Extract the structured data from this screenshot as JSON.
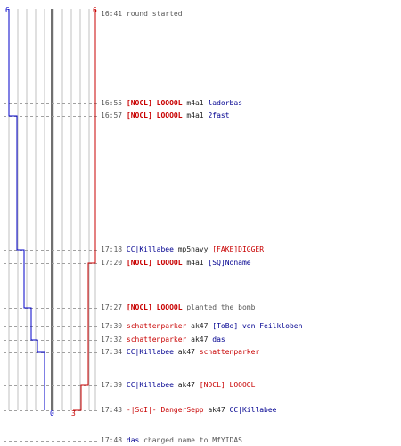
{
  "scores": {
    "blue_top": "6",
    "red_top": "6",
    "blue_bottom": "0",
    "red_bottom": "3"
  },
  "colors": {
    "blue": "#0000c8",
    "red": "#c80000",
    "grid": "#c0c0c0",
    "center": "#707070"
  },
  "events": [
    {
      "time": "16:41",
      "parts": [
        {
          "text": "round started",
          "cls": "act"
        }
      ]
    },
    {
      "time": "16:55",
      "parts": [
        {
          "text": "[NOCL] LOOOOL",
          "cls": "red"
        },
        {
          "text": "m4a1",
          "cls": "wep"
        },
        {
          "text": "ladorbas",
          "cls": "nb"
        }
      ]
    },
    {
      "time": "16:57",
      "parts": [
        {
          "text": "[NOCL] LOOOOL",
          "cls": "red"
        },
        {
          "text": "m4a1",
          "cls": "wep"
        },
        {
          "text": "2fast",
          "cls": "nb"
        }
      ]
    },
    {
      "time": "17:18",
      "parts": [
        {
          "text": "CC|Killabee",
          "cls": "nb"
        },
        {
          "text": "mp5navy",
          "cls": "wep"
        },
        {
          "text": "[FAKE]DIGGER",
          "cls": "nr"
        }
      ]
    },
    {
      "time": "17:20",
      "parts": [
        {
          "text": "[NOCL] LOOOOL",
          "cls": "red"
        },
        {
          "text": "m4a1",
          "cls": "wep"
        },
        {
          "text": "[SQ]Noname",
          "cls": "nb"
        }
      ]
    },
    {
      "time": "17:27",
      "parts": [
        {
          "text": "[NOCL] LOOOOL",
          "cls": "red"
        },
        {
          "text": "planted the bomb",
          "cls": "act"
        }
      ]
    },
    {
      "time": "17:30",
      "parts": [
        {
          "text": "schattenparker",
          "cls": "nr"
        },
        {
          "text": "ak47",
          "cls": "wep"
        },
        {
          "text": "[ToBo] von Feilkloben",
          "cls": "nb"
        }
      ]
    },
    {
      "time": "17:32",
      "parts": [
        {
          "text": "schattenparker",
          "cls": "nr"
        },
        {
          "text": "ak47",
          "cls": "wep"
        },
        {
          "text": "das",
          "cls": "nb"
        }
      ]
    },
    {
      "time": "17:34",
      "parts": [
        {
          "text": "CC|Killabee",
          "cls": "nb"
        },
        {
          "text": "ak47",
          "cls": "wep"
        },
        {
          "text": "schattenparker",
          "cls": "nr"
        }
      ]
    },
    {
      "time": "17:39",
      "parts": [
        {
          "text": "CC|Killabee",
          "cls": "nb"
        },
        {
          "text": "ak47",
          "cls": "wep"
        },
        {
          "text": "[NOCL] LOOOOL",
          "cls": "nr"
        }
      ]
    },
    {
      "time": "17:43",
      "parts": [
        {
          "text": "-|SoI|- DangerSepp",
          "cls": "nr"
        },
        {
          "text": "ak47",
          "cls": "wep"
        },
        {
          "text": "CC|Killabee",
          "cls": "nb"
        }
      ]
    },
    {
      "time": "17:48",
      "parts": [
        {
          "text": "das",
          "cls": "nb"
        },
        {
          "text": "changed name to MfYIDAS",
          "cls": "act"
        }
      ]
    }
  ],
  "players_alive": {
    "blue": [
      6,
      6,
      5,
      4,
      4,
      3,
      3,
      2,
      1,
      1,
      1,
      0
    ],
    "red": [
      6,
      6,
      6,
      6,
      5,
      5,
      5,
      5,
      5,
      4,
      3,
      3
    ]
  }
}
